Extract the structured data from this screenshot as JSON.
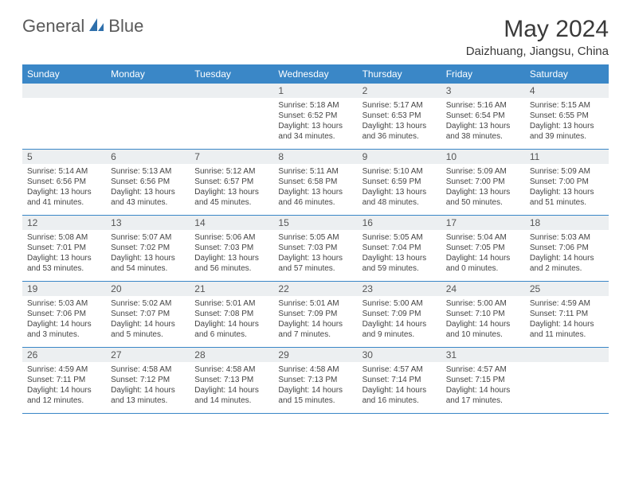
{
  "brand": {
    "name1": "General",
    "name2": "Blue"
  },
  "title": "May 2024",
  "location": "Daizhuang, Jiangsu, China",
  "colors": {
    "header_bg": "#3a87c7",
    "header_text": "#ffffff",
    "daynum_bg": "#eceff1",
    "border": "#3a87c7"
  },
  "day_names": [
    "Sunday",
    "Monday",
    "Tuesday",
    "Wednesday",
    "Thursday",
    "Friday",
    "Saturday"
  ],
  "weeks": [
    [
      {
        "n": "",
        "l1": "",
        "l2": "",
        "l3": "",
        "l4": ""
      },
      {
        "n": "",
        "l1": "",
        "l2": "",
        "l3": "",
        "l4": ""
      },
      {
        "n": "",
        "l1": "",
        "l2": "",
        "l3": "",
        "l4": ""
      },
      {
        "n": "1",
        "l1": "Sunrise: 5:18 AM",
        "l2": "Sunset: 6:52 PM",
        "l3": "Daylight: 13 hours",
        "l4": "and 34 minutes."
      },
      {
        "n": "2",
        "l1": "Sunrise: 5:17 AM",
        "l2": "Sunset: 6:53 PM",
        "l3": "Daylight: 13 hours",
        "l4": "and 36 minutes."
      },
      {
        "n": "3",
        "l1": "Sunrise: 5:16 AM",
        "l2": "Sunset: 6:54 PM",
        "l3": "Daylight: 13 hours",
        "l4": "and 38 minutes."
      },
      {
        "n": "4",
        "l1": "Sunrise: 5:15 AM",
        "l2": "Sunset: 6:55 PM",
        "l3": "Daylight: 13 hours",
        "l4": "and 39 minutes."
      }
    ],
    [
      {
        "n": "5",
        "l1": "Sunrise: 5:14 AM",
        "l2": "Sunset: 6:56 PM",
        "l3": "Daylight: 13 hours",
        "l4": "and 41 minutes."
      },
      {
        "n": "6",
        "l1": "Sunrise: 5:13 AM",
        "l2": "Sunset: 6:56 PM",
        "l3": "Daylight: 13 hours",
        "l4": "and 43 minutes."
      },
      {
        "n": "7",
        "l1": "Sunrise: 5:12 AM",
        "l2": "Sunset: 6:57 PM",
        "l3": "Daylight: 13 hours",
        "l4": "and 45 minutes."
      },
      {
        "n": "8",
        "l1": "Sunrise: 5:11 AM",
        "l2": "Sunset: 6:58 PM",
        "l3": "Daylight: 13 hours",
        "l4": "and 46 minutes."
      },
      {
        "n": "9",
        "l1": "Sunrise: 5:10 AM",
        "l2": "Sunset: 6:59 PM",
        "l3": "Daylight: 13 hours",
        "l4": "and 48 minutes."
      },
      {
        "n": "10",
        "l1": "Sunrise: 5:09 AM",
        "l2": "Sunset: 7:00 PM",
        "l3": "Daylight: 13 hours",
        "l4": "and 50 minutes."
      },
      {
        "n": "11",
        "l1": "Sunrise: 5:09 AM",
        "l2": "Sunset: 7:00 PM",
        "l3": "Daylight: 13 hours",
        "l4": "and 51 minutes."
      }
    ],
    [
      {
        "n": "12",
        "l1": "Sunrise: 5:08 AM",
        "l2": "Sunset: 7:01 PM",
        "l3": "Daylight: 13 hours",
        "l4": "and 53 minutes."
      },
      {
        "n": "13",
        "l1": "Sunrise: 5:07 AM",
        "l2": "Sunset: 7:02 PM",
        "l3": "Daylight: 13 hours",
        "l4": "and 54 minutes."
      },
      {
        "n": "14",
        "l1": "Sunrise: 5:06 AM",
        "l2": "Sunset: 7:03 PM",
        "l3": "Daylight: 13 hours",
        "l4": "and 56 minutes."
      },
      {
        "n": "15",
        "l1": "Sunrise: 5:05 AM",
        "l2": "Sunset: 7:03 PM",
        "l3": "Daylight: 13 hours",
        "l4": "and 57 minutes."
      },
      {
        "n": "16",
        "l1": "Sunrise: 5:05 AM",
        "l2": "Sunset: 7:04 PM",
        "l3": "Daylight: 13 hours",
        "l4": "and 59 minutes."
      },
      {
        "n": "17",
        "l1": "Sunrise: 5:04 AM",
        "l2": "Sunset: 7:05 PM",
        "l3": "Daylight: 14 hours",
        "l4": "and 0 minutes."
      },
      {
        "n": "18",
        "l1": "Sunrise: 5:03 AM",
        "l2": "Sunset: 7:06 PM",
        "l3": "Daylight: 14 hours",
        "l4": "and 2 minutes."
      }
    ],
    [
      {
        "n": "19",
        "l1": "Sunrise: 5:03 AM",
        "l2": "Sunset: 7:06 PM",
        "l3": "Daylight: 14 hours",
        "l4": "and 3 minutes."
      },
      {
        "n": "20",
        "l1": "Sunrise: 5:02 AM",
        "l2": "Sunset: 7:07 PM",
        "l3": "Daylight: 14 hours",
        "l4": "and 5 minutes."
      },
      {
        "n": "21",
        "l1": "Sunrise: 5:01 AM",
        "l2": "Sunset: 7:08 PM",
        "l3": "Daylight: 14 hours",
        "l4": "and 6 minutes."
      },
      {
        "n": "22",
        "l1": "Sunrise: 5:01 AM",
        "l2": "Sunset: 7:09 PM",
        "l3": "Daylight: 14 hours",
        "l4": "and 7 minutes."
      },
      {
        "n": "23",
        "l1": "Sunrise: 5:00 AM",
        "l2": "Sunset: 7:09 PM",
        "l3": "Daylight: 14 hours",
        "l4": "and 9 minutes."
      },
      {
        "n": "24",
        "l1": "Sunrise: 5:00 AM",
        "l2": "Sunset: 7:10 PM",
        "l3": "Daylight: 14 hours",
        "l4": "and 10 minutes."
      },
      {
        "n": "25",
        "l1": "Sunrise: 4:59 AM",
        "l2": "Sunset: 7:11 PM",
        "l3": "Daylight: 14 hours",
        "l4": "and 11 minutes."
      }
    ],
    [
      {
        "n": "26",
        "l1": "Sunrise: 4:59 AM",
        "l2": "Sunset: 7:11 PM",
        "l3": "Daylight: 14 hours",
        "l4": "and 12 minutes."
      },
      {
        "n": "27",
        "l1": "Sunrise: 4:58 AM",
        "l2": "Sunset: 7:12 PM",
        "l3": "Daylight: 14 hours",
        "l4": "and 13 minutes."
      },
      {
        "n": "28",
        "l1": "Sunrise: 4:58 AM",
        "l2": "Sunset: 7:13 PM",
        "l3": "Daylight: 14 hours",
        "l4": "and 14 minutes."
      },
      {
        "n": "29",
        "l1": "Sunrise: 4:58 AM",
        "l2": "Sunset: 7:13 PM",
        "l3": "Daylight: 14 hours",
        "l4": "and 15 minutes."
      },
      {
        "n": "30",
        "l1": "Sunrise: 4:57 AM",
        "l2": "Sunset: 7:14 PM",
        "l3": "Daylight: 14 hours",
        "l4": "and 16 minutes."
      },
      {
        "n": "31",
        "l1": "Sunrise: 4:57 AM",
        "l2": "Sunset: 7:15 PM",
        "l3": "Daylight: 14 hours",
        "l4": "and 17 minutes."
      },
      {
        "n": "",
        "l1": "",
        "l2": "",
        "l3": "",
        "l4": ""
      }
    ]
  ]
}
